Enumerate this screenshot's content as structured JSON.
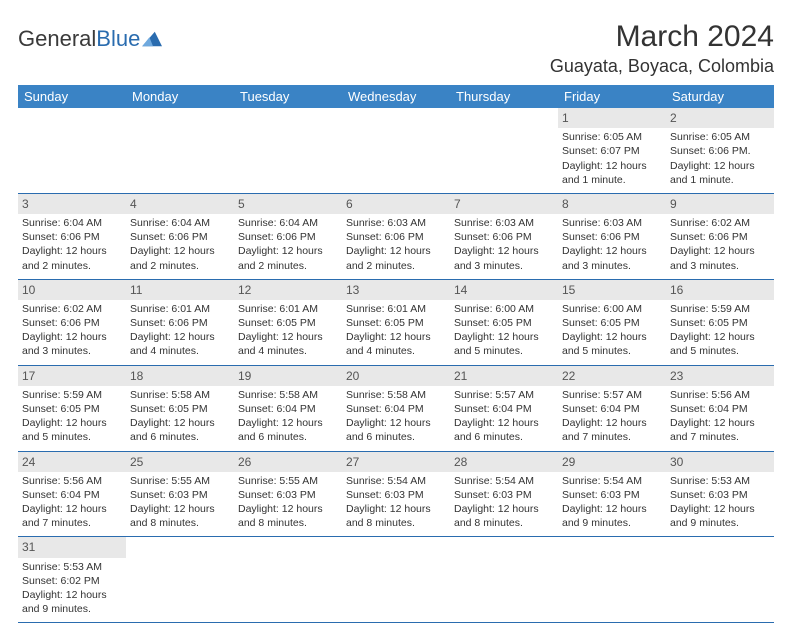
{
  "logo": {
    "general": "General",
    "blue": "Blue"
  },
  "header": {
    "month_title": "March 2024",
    "location": "Guayata, Boyaca, Colombia"
  },
  "colors": {
    "header_bg": "#3a83c5",
    "header_fg": "#ffffff",
    "row_divider": "#2a6caf",
    "daynum_bg": "#e8e8e8",
    "text": "#333333"
  },
  "weekdays": [
    "Sunday",
    "Monday",
    "Tuesday",
    "Wednesday",
    "Thursday",
    "Friday",
    "Saturday"
  ],
  "weeks": [
    [
      null,
      null,
      null,
      null,
      null,
      {
        "n": "1",
        "sr": "Sunrise: 6:05 AM",
        "ss": "Sunset: 6:07 PM",
        "dl": "Daylight: 12 hours and 1 minute."
      },
      {
        "n": "2",
        "sr": "Sunrise: 6:05 AM",
        "ss": "Sunset: 6:06 PM.",
        "dl": "Daylight: 12 hours and 1 minute."
      }
    ],
    [
      {
        "n": "3",
        "sr": "Sunrise: 6:04 AM",
        "ss": "Sunset: 6:06 PM",
        "dl": "Daylight: 12 hours and 2 minutes."
      },
      {
        "n": "4",
        "sr": "Sunrise: 6:04 AM",
        "ss": "Sunset: 6:06 PM",
        "dl": "Daylight: 12 hours and 2 minutes."
      },
      {
        "n": "5",
        "sr": "Sunrise: 6:04 AM",
        "ss": "Sunset: 6:06 PM",
        "dl": "Daylight: 12 hours and 2 minutes."
      },
      {
        "n": "6",
        "sr": "Sunrise: 6:03 AM",
        "ss": "Sunset: 6:06 PM",
        "dl": "Daylight: 12 hours and 2 minutes."
      },
      {
        "n": "7",
        "sr": "Sunrise: 6:03 AM",
        "ss": "Sunset: 6:06 PM",
        "dl": "Daylight: 12 hours and 3 minutes."
      },
      {
        "n": "8",
        "sr": "Sunrise: 6:03 AM",
        "ss": "Sunset: 6:06 PM",
        "dl": "Daylight: 12 hours and 3 minutes."
      },
      {
        "n": "9",
        "sr": "Sunrise: 6:02 AM",
        "ss": "Sunset: 6:06 PM",
        "dl": "Daylight: 12 hours and 3 minutes."
      }
    ],
    [
      {
        "n": "10",
        "sr": "Sunrise: 6:02 AM",
        "ss": "Sunset: 6:06 PM",
        "dl": "Daylight: 12 hours and 3 minutes."
      },
      {
        "n": "11",
        "sr": "Sunrise: 6:01 AM",
        "ss": "Sunset: 6:06 PM",
        "dl": "Daylight: 12 hours and 4 minutes."
      },
      {
        "n": "12",
        "sr": "Sunrise: 6:01 AM",
        "ss": "Sunset: 6:05 PM",
        "dl": "Daylight: 12 hours and 4 minutes."
      },
      {
        "n": "13",
        "sr": "Sunrise: 6:01 AM",
        "ss": "Sunset: 6:05 PM",
        "dl": "Daylight: 12 hours and 4 minutes."
      },
      {
        "n": "14",
        "sr": "Sunrise: 6:00 AM",
        "ss": "Sunset: 6:05 PM",
        "dl": "Daylight: 12 hours and 5 minutes."
      },
      {
        "n": "15",
        "sr": "Sunrise: 6:00 AM",
        "ss": "Sunset: 6:05 PM",
        "dl": "Daylight: 12 hours and 5 minutes."
      },
      {
        "n": "16",
        "sr": "Sunrise: 5:59 AM",
        "ss": "Sunset: 6:05 PM",
        "dl": "Daylight: 12 hours and 5 minutes."
      }
    ],
    [
      {
        "n": "17",
        "sr": "Sunrise: 5:59 AM",
        "ss": "Sunset: 6:05 PM",
        "dl": "Daylight: 12 hours and 5 minutes."
      },
      {
        "n": "18",
        "sr": "Sunrise: 5:58 AM",
        "ss": "Sunset: 6:05 PM",
        "dl": "Daylight: 12 hours and 6 minutes."
      },
      {
        "n": "19",
        "sr": "Sunrise: 5:58 AM",
        "ss": "Sunset: 6:04 PM",
        "dl": "Daylight: 12 hours and 6 minutes."
      },
      {
        "n": "20",
        "sr": "Sunrise: 5:58 AM",
        "ss": "Sunset: 6:04 PM",
        "dl": "Daylight: 12 hours and 6 minutes."
      },
      {
        "n": "21",
        "sr": "Sunrise: 5:57 AM",
        "ss": "Sunset: 6:04 PM",
        "dl": "Daylight: 12 hours and 6 minutes."
      },
      {
        "n": "22",
        "sr": "Sunrise: 5:57 AM",
        "ss": "Sunset: 6:04 PM",
        "dl": "Daylight: 12 hours and 7 minutes."
      },
      {
        "n": "23",
        "sr": "Sunrise: 5:56 AM",
        "ss": "Sunset: 6:04 PM",
        "dl": "Daylight: 12 hours and 7 minutes."
      }
    ],
    [
      {
        "n": "24",
        "sr": "Sunrise: 5:56 AM",
        "ss": "Sunset: 6:04 PM",
        "dl": "Daylight: 12 hours and 7 minutes."
      },
      {
        "n": "25",
        "sr": "Sunrise: 5:55 AM",
        "ss": "Sunset: 6:03 PM",
        "dl": "Daylight: 12 hours and 8 minutes."
      },
      {
        "n": "26",
        "sr": "Sunrise: 5:55 AM",
        "ss": "Sunset: 6:03 PM",
        "dl": "Daylight: 12 hours and 8 minutes."
      },
      {
        "n": "27",
        "sr": "Sunrise: 5:54 AM",
        "ss": "Sunset: 6:03 PM",
        "dl": "Daylight: 12 hours and 8 minutes."
      },
      {
        "n": "28",
        "sr": "Sunrise: 5:54 AM",
        "ss": "Sunset: 6:03 PM",
        "dl": "Daylight: 12 hours and 8 minutes."
      },
      {
        "n": "29",
        "sr": "Sunrise: 5:54 AM",
        "ss": "Sunset: 6:03 PM",
        "dl": "Daylight: 12 hours and 9 minutes."
      },
      {
        "n": "30",
        "sr": "Sunrise: 5:53 AM",
        "ss": "Sunset: 6:03 PM",
        "dl": "Daylight: 12 hours and 9 minutes."
      }
    ],
    [
      {
        "n": "31",
        "sr": "Sunrise: 5:53 AM",
        "ss": "Sunset: 6:02 PM",
        "dl": "Daylight: 12 hours and 9 minutes."
      },
      null,
      null,
      null,
      null,
      null,
      null
    ]
  ]
}
